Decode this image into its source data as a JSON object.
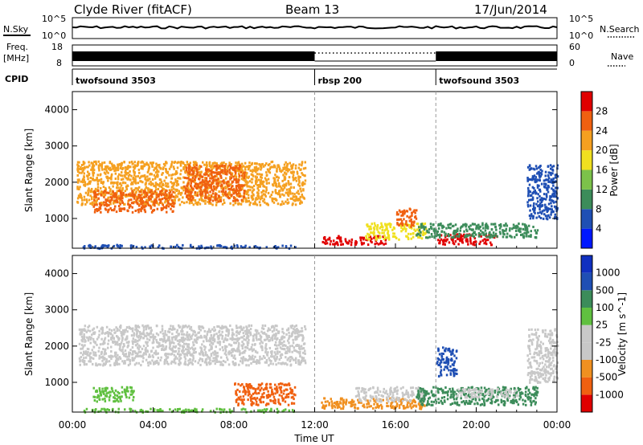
{
  "header": {
    "station": "Clyde River (fitACF)",
    "beam": "Beam 13",
    "date": "17/Jun/2014"
  },
  "top_panels": {
    "nsky_label": "N.Sky",
    "nsky_ticks": [
      "10^5",
      "10^0"
    ],
    "nsearch_label": "N.Search",
    "nsearch_ticks": [
      "10^5",
      "10^0"
    ],
    "freq_label": "Freq.",
    "freq_unit": "[MHz]",
    "freq_ticks": [
      "18",
      "8"
    ],
    "nave_label": "Nave",
    "nave_ticks": [
      "60",
      "0"
    ],
    "cpid_label": "CPID",
    "cpid_segments": [
      {
        "name": "twofsound 3503",
        "start_hour": 0,
        "end_hour": 12
      },
      {
        "name": "rbsp 200",
        "start_hour": 12,
        "end_hour": 18
      },
      {
        "name": "twofsound 3503",
        "start_hour": 18,
        "end_hour": 24
      }
    ]
  },
  "colors": {
    "power_scale": [
      "#0018ff",
      "#1f4fb4",
      "#3c8c5a",
      "#7cc24a",
      "#f0e020",
      "#f5a020",
      "#f06010",
      "#e00000"
    ],
    "velocity_scale": [
      "#e00000",
      "#f06010",
      "#f09020",
      "#c8c8c8",
      "#c8c8c8",
      "#60c040",
      "#3c8c5a",
      "#1f4fb4",
      "#1030c0"
    ]
  },
  "chart_data": [
    {
      "type": "heatmap",
      "title": "Power",
      "ylabel": "Slant Range [km]",
      "xlabel": "Time UT",
      "x_ticks": [
        "00:00",
        "04:00",
        "08:00",
        "12:00",
        "16:00",
        "20:00",
        "00:00"
      ],
      "xlim_hours": [
        0,
        24
      ],
      "ylim": [
        180,
        4500
      ],
      "y_ticks": [
        1000,
        2000,
        3000,
        4000
      ],
      "colorbar_label": "Power [dB]",
      "colorbar_ticks": [
        "4",
        "8",
        "12",
        "16",
        "20",
        "24",
        "28"
      ],
      "dashed_lines_hours": [
        12,
        18
      ],
      "regions": [
        {
          "t0": 0.2,
          "t1": 11.5,
          "r0": 1400,
          "r1": 2600,
          "level": 5
        },
        {
          "t0": 1.0,
          "t1": 5.0,
          "r0": 1200,
          "r1": 1800,
          "level": 6
        },
        {
          "t0": 5.5,
          "t1": 8.5,
          "r0": 1500,
          "r1": 2500,
          "level": 6
        },
        {
          "t0": 12.3,
          "t1": 15.5,
          "r0": 300,
          "r1": 550,
          "level": 7
        },
        {
          "t0": 14.5,
          "t1": 17.5,
          "r0": 450,
          "r1": 900,
          "level": 4
        },
        {
          "t0": 16.0,
          "t1": 17.0,
          "r0": 800,
          "r1": 1300,
          "level": 6
        },
        {
          "t0": 18.0,
          "t1": 21.0,
          "r0": 300,
          "r1": 600,
          "level": 7
        },
        {
          "t0": 17.0,
          "t1": 23.0,
          "r0": 500,
          "r1": 900,
          "level": 2
        },
        {
          "t0": 0.5,
          "t1": 11.0,
          "r0": 200,
          "r1": 300,
          "level": 1
        },
        {
          "t0": 22.5,
          "t1": 24.0,
          "r0": 1000,
          "r1": 2500,
          "level": 1
        }
      ]
    },
    {
      "type": "heatmap",
      "title": "Velocity",
      "ylabel": "Slant Range [km]",
      "xlabel": "Time UT",
      "x_ticks": [
        "00:00",
        "04:00",
        "08:00",
        "12:00",
        "16:00",
        "20:00",
        "00:00"
      ],
      "xlim_hours": [
        0,
        24
      ],
      "ylim": [
        180,
        4500
      ],
      "y_ticks": [
        1000,
        2000,
        3000,
        4000
      ],
      "colorbar_label": "Velocity [m s^-1]",
      "colorbar_ticks": [
        "1000",
        "500",
        "100",
        "25",
        "-25",
        "-100",
        "-500",
        "-1000"
      ],
      "dashed_lines_hours": [
        12,
        18
      ],
      "regions": [
        {
          "t0": 0.3,
          "t1": 11.5,
          "r0": 1500,
          "r1": 2600,
          "level": 3
        },
        {
          "t0": 8.0,
          "t1": 11.0,
          "r0": 400,
          "r1": 1000,
          "level": 1
        },
        {
          "t0": 12.3,
          "t1": 17.5,
          "r0": 300,
          "r1": 600,
          "level": 2
        },
        {
          "t0": 14.0,
          "t1": 17.5,
          "r0": 500,
          "r1": 900,
          "level": 3
        },
        {
          "t0": 17.0,
          "t1": 23.0,
          "r0": 400,
          "r1": 900,
          "level": 6
        },
        {
          "t0": 19.0,
          "t1": 22.0,
          "r0": 600,
          "r1": 850,
          "level": 4
        },
        {
          "t0": 18.0,
          "t1": 19.0,
          "r0": 1200,
          "r1": 2000,
          "level": 7
        },
        {
          "t0": 1.0,
          "t1": 3.0,
          "r0": 500,
          "r1": 900,
          "level": 5
        },
        {
          "t0": 22.5,
          "t1": 24.0,
          "r0": 1000,
          "r1": 2500,
          "level": 3
        },
        {
          "t0": 0.5,
          "t1": 11.0,
          "r0": 200,
          "r1": 300,
          "level": 5
        }
      ]
    }
  ]
}
